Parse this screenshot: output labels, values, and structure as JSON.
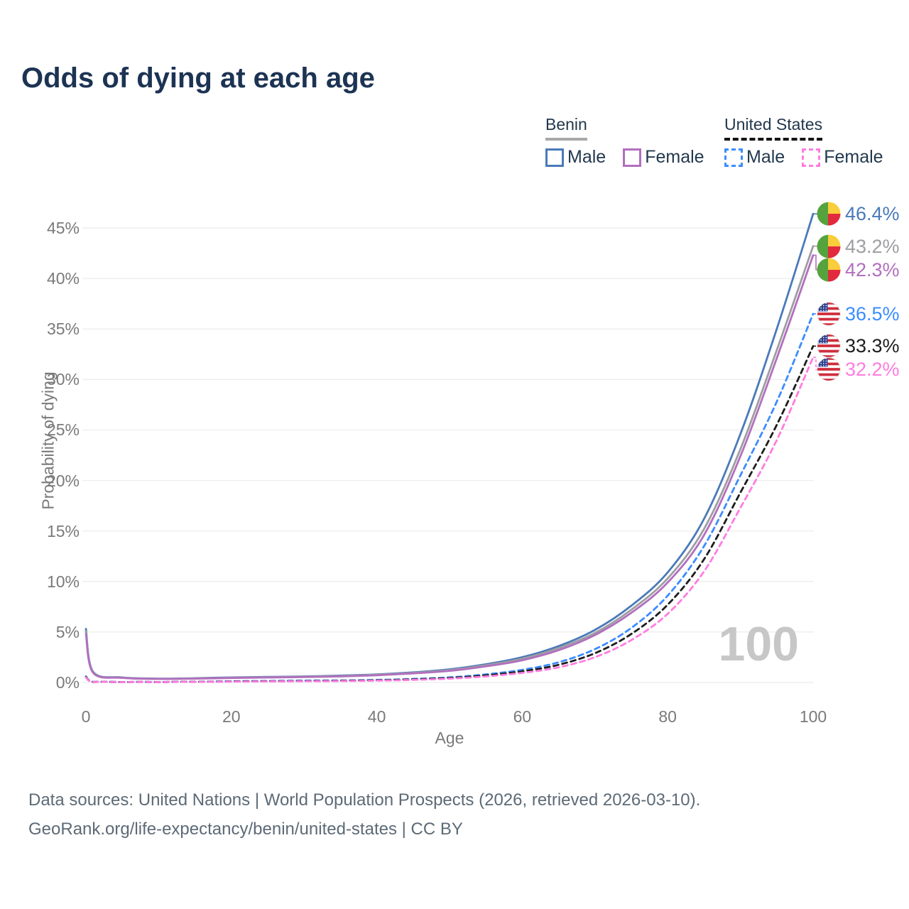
{
  "title": "Odds of dying at each age",
  "legend": {
    "benin": {
      "label": "Benin",
      "male_label": "Male",
      "female_label": "Female"
    },
    "us": {
      "label": "United States",
      "male_label": "Male",
      "female_label": "Female"
    }
  },
  "chart_data": {
    "type": "line",
    "title": "Odds of dying at each age",
    "xlabel": "Age",
    "ylabel": "Probability of dying",
    "watermark": "100",
    "x_range": [
      0,
      100
    ],
    "ylim": [
      0,
      47
    ],
    "grid": "horizontal",
    "x_ticks": [
      {
        "v": 0,
        "label": "0"
      },
      {
        "v": 20,
        "label": "20"
      },
      {
        "v": 40,
        "label": "40"
      },
      {
        "v": 60,
        "label": "60"
      },
      {
        "v": 80,
        "label": "80"
      },
      {
        "v": 100,
        "label": "100"
      }
    ],
    "y_ticks": [
      {
        "v": 0,
        "label": "0%"
      },
      {
        "v": 5,
        "label": "5%"
      },
      {
        "v": 10,
        "label": "10%"
      },
      {
        "v": 15,
        "label": "15%"
      },
      {
        "v": 20,
        "label": "20%"
      },
      {
        "v": 25,
        "label": "25%"
      },
      {
        "v": 30,
        "label": "30%"
      },
      {
        "v": 35,
        "label": "35%"
      },
      {
        "v": 40,
        "label": "40%"
      },
      {
        "v": 45,
        "label": "45%"
      }
    ],
    "ages": [
      0,
      1,
      5,
      10,
      15,
      20,
      25,
      30,
      35,
      40,
      45,
      50,
      55,
      60,
      65,
      70,
      75,
      80,
      85,
      90,
      95,
      100
    ],
    "series": [
      {
        "name": "Benin Male",
        "country": "Benin",
        "sex": "Male",
        "color": "#4a7ab9",
        "dashed": false,
        "flag": "benin",
        "end_label": "46.4%",
        "end_value": 46.4,
        "values": [
          5.3,
          1.05,
          0.5,
          0.38,
          0.42,
          0.5,
          0.55,
          0.6,
          0.68,
          0.8,
          1.0,
          1.3,
          1.8,
          2.5,
          3.6,
          5.2,
          7.6,
          10.9,
          16.2,
          24.6,
          35.0,
          46.4
        ]
      },
      {
        "name": "Benin Both sexes",
        "country": "Benin",
        "sex": "Both",
        "color": "#9e9ea2",
        "dashed": false,
        "flag": "benin",
        "end_label": "43.2%",
        "end_value": 43.2,
        "values": [
          5.05,
          1.0,
          0.48,
          0.36,
          0.4,
          0.47,
          0.52,
          0.57,
          0.64,
          0.76,
          0.95,
          1.22,
          1.7,
          2.35,
          3.4,
          4.9,
          7.2,
          10.3,
          15.2,
          23.1,
          32.9,
          43.2
        ]
      },
      {
        "name": "Benin Female",
        "country": "Benin",
        "sex": "Female",
        "color": "#b26fbe",
        "dashed": false,
        "flag": "benin",
        "end_label": "42.3%",
        "end_value": 42.3,
        "values": [
          4.8,
          0.95,
          0.46,
          0.35,
          0.38,
          0.44,
          0.49,
          0.54,
          0.6,
          0.72,
          0.9,
          1.15,
          1.6,
          2.2,
          3.2,
          4.7,
          6.9,
          9.9,
          14.6,
          22.4,
          32.1,
          42.3
        ]
      },
      {
        "name": "United States Male",
        "country": "United States",
        "sex": "Male",
        "color": "#3c8cff",
        "dashed": true,
        "flag": "us",
        "end_label": "36.5%",
        "end_value": 36.5,
        "values": [
          0.6,
          0.05,
          0.03,
          0.03,
          0.07,
          0.12,
          0.15,
          0.18,
          0.2,
          0.25,
          0.35,
          0.5,
          0.8,
          1.25,
          2.0,
          3.3,
          5.4,
          8.6,
          13.5,
          20.5,
          27.8,
          36.5
        ]
      },
      {
        "name": "United States Both sexes",
        "country": "United States",
        "sex": "Both",
        "color": "#1d1d1d",
        "dashed": true,
        "flag": "us",
        "end_label": "33.3%",
        "end_value": 33.3,
        "values": [
          0.55,
          0.05,
          0.03,
          0.02,
          0.06,
          0.1,
          0.12,
          0.14,
          0.17,
          0.22,
          0.3,
          0.45,
          0.7,
          1.1,
          1.75,
          2.9,
          4.8,
          7.7,
          12.2,
          18.8,
          25.5,
          33.3
        ]
      },
      {
        "name": "United States Female",
        "country": "United States",
        "sex": "Female",
        "color": "#ff7ce0",
        "dashed": true,
        "flag": "us",
        "end_label": "32.2%",
        "end_value": 32.2,
        "values": [
          0.5,
          0.04,
          0.02,
          0.02,
          0.05,
          0.08,
          0.1,
          0.12,
          0.14,
          0.18,
          0.26,
          0.38,
          0.6,
          0.95,
          1.5,
          2.5,
          4.2,
          6.8,
          11.0,
          17.3,
          24.0,
          32.2
        ]
      }
    ]
  },
  "footer": {
    "line1": "Data sources: United Nations | World Population Prospects (2026, retrieved 2026-03-10).",
    "line2": "GeoRank.org/life-expectancy/benin/united-states | CC BY"
  }
}
